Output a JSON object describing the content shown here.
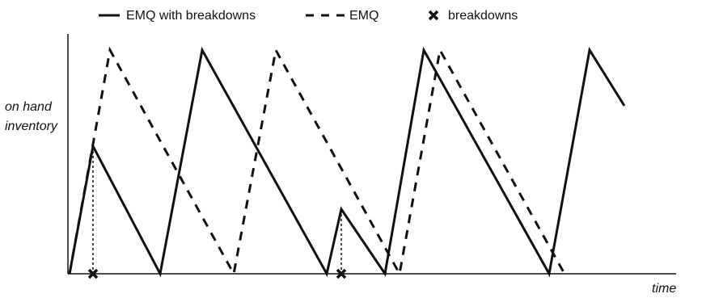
{
  "chart_data": {
    "type": "line",
    "title": "",
    "xlabel": "time",
    "ylabel_lines": [
      "on hand",
      "inventory"
    ],
    "xlim": [
      0,
      686
    ],
    "ylim": [
      0,
      277
    ],
    "grid": false,
    "legend_position": "top",
    "legend": [
      {
        "label": "EMQ with breakdowns",
        "style": "solid"
      },
      {
        "label": "EMQ",
        "style": "dashed"
      },
      {
        "label": "breakdowns",
        "style": "marker-x"
      }
    ],
    "series": [
      {
        "name": "EMQ with breakdowns",
        "style": "solid",
        "color": "#111111",
        "points": [
          [
            0,
            0
          ],
          [
            29,
            158
          ],
          [
            112,
            0
          ],
          [
            164,
            277
          ],
          [
            318,
            0
          ],
          [
            336,
            80
          ],
          [
            390,
            0
          ],
          [
            438,
            277
          ],
          [
            593,
            0
          ],
          [
            643,
            277
          ],
          [
            686,
            208
          ]
        ]
      },
      {
        "name": "EMQ",
        "style": "dashed",
        "color": "#111111",
        "points": [
          [
            0,
            0
          ],
          [
            50,
            277
          ],
          [
            203,
            0
          ],
          [
            255,
            277
          ],
          [
            408,
            0
          ],
          [
            458,
            277
          ],
          [
            612,
            0
          ]
        ]
      }
    ],
    "breakdowns": [
      {
        "x": 29,
        "y": 158
      },
      {
        "x": 336,
        "y": 80
      }
    ]
  }
}
